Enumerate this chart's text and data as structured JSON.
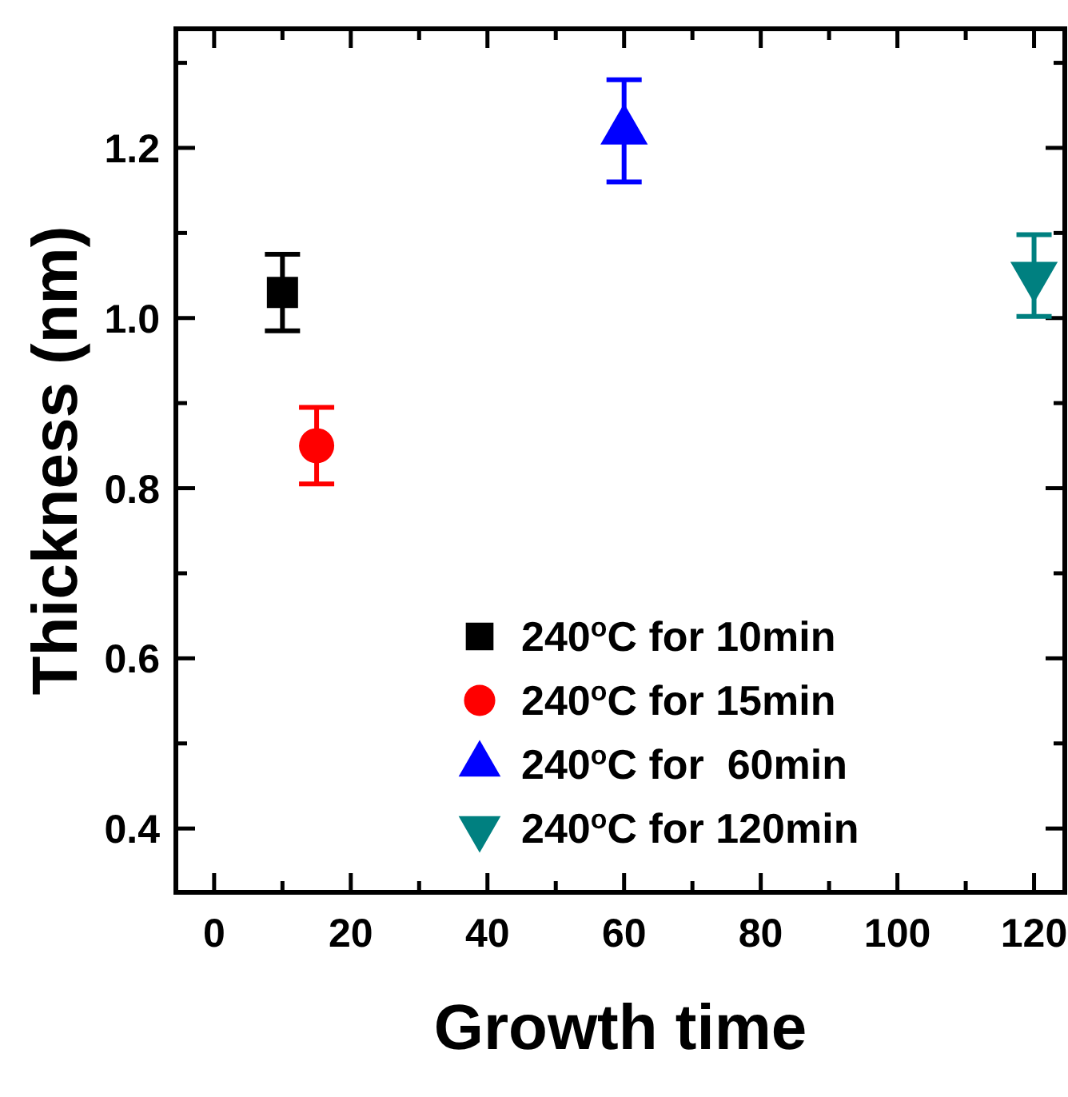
{
  "chart_data": {
    "type": "scatter",
    "xlabel": "Growth time",
    "ylabel": "Thickness (nm)",
    "xlim": [
      -5.6,
      124.5
    ],
    "ylim": [
      0.325,
      1.34
    ],
    "xticks": [
      0,
      {
        "value": 10,
        "label": null
      },
      20,
      {
        "value": 30,
        "label": null
      },
      40,
      {
        "value": 50,
        "label": null
      },
      60,
      {
        "value": 70,
        "label": null
      },
      80,
      {
        "value": 90,
        "label": null
      },
      100,
      {
        "value": 110,
        "label": null
      },
      120
    ],
    "yticks": [
      {
        "value": 0.4,
        "label": "0.4"
      },
      {
        "value": 0.5,
        "label": null
      },
      {
        "value": 0.6,
        "label": "0.6"
      },
      {
        "value": 0.7,
        "label": null
      },
      {
        "value": 0.8,
        "label": "0.8"
      },
      {
        "value": 0.9,
        "label": null
      },
      {
        "value": 1.0,
        "label": "1.0"
      },
      {
        "value": 1.1,
        "label": null
      },
      {
        "value": 1.2,
        "label": "1.2"
      },
      {
        "value": 1.3,
        "label": null
      }
    ],
    "grid": false,
    "legend": "bottom right",
    "series": [
      {
        "name": "240$^{o}$C for 10min",
        "color": "#000000",
        "marker": "square",
        "x": [
          10
        ],
        "values": [
          1.03
        ],
        "errors": [
          0.045
        ]
      },
      {
        "name": "240$^{o}$C for 15min",
        "color": "#ff0000",
        "marker": "circle",
        "x": [
          15
        ],
        "values": [
          0.85
        ],
        "errors": [
          0.045
        ]
      },
      {
        "name": "240$^{o}$C for  60min",
        "color": "#0000ff",
        "marker": "triangle",
        "x": [
          60
        ],
        "values": [
          1.22
        ],
        "errors": [
          0.06
        ]
      },
      {
        "name": "240$^{o}$C for 120min",
        "color": "#008080",
        "marker": "triangle-down",
        "x": [
          120
        ],
        "values": [
          1.05
        ],
        "errors": [
          0.048
        ]
      }
    ]
  }
}
